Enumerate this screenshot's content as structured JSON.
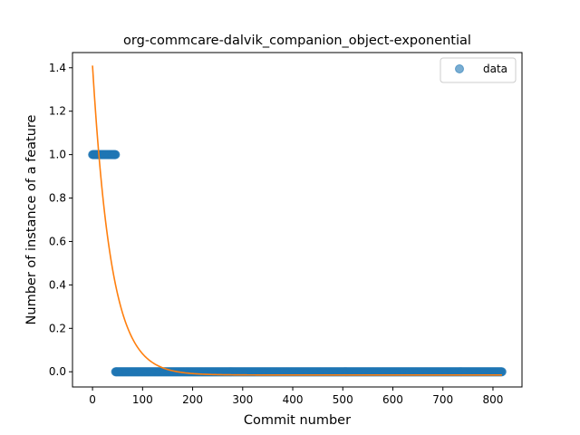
{
  "chart_data": {
    "type": "scatter",
    "title": "org-commcare-dalvik_companion_object-exponential",
    "xlabel": "Commit number",
    "ylabel": "Number of instance of a feature",
    "xlim": [
      -40,
      858
    ],
    "ylim": [
      -0.07,
      1.47
    ],
    "xticks": [
      0,
      100,
      200,
      300,
      400,
      500,
      600,
      700,
      800
    ],
    "yticks": [
      0.0,
      0.2,
      0.4,
      0.6,
      0.8,
      1.0,
      1.2,
      1.4
    ],
    "grid": false,
    "legend": {
      "placement": "top-right",
      "entries": [
        "data"
      ]
    },
    "colors": {
      "data": "#1f77b4",
      "fit": "#ff7f0e"
    },
    "series": [
      {
        "name": "data",
        "kind": "scatter",
        "segments": [
          {
            "x_start": 0,
            "x_end": 46,
            "y": 1.0
          },
          {
            "x_start": 46,
            "x_end": 818,
            "y": 0.0
          }
        ]
      },
      {
        "kind": "line",
        "model": "exponential",
        "params": {
          "a": 1.425,
          "b": 0.0268,
          "c": -0.015
        },
        "x_range": [
          0,
          818
        ]
      }
    ]
  }
}
